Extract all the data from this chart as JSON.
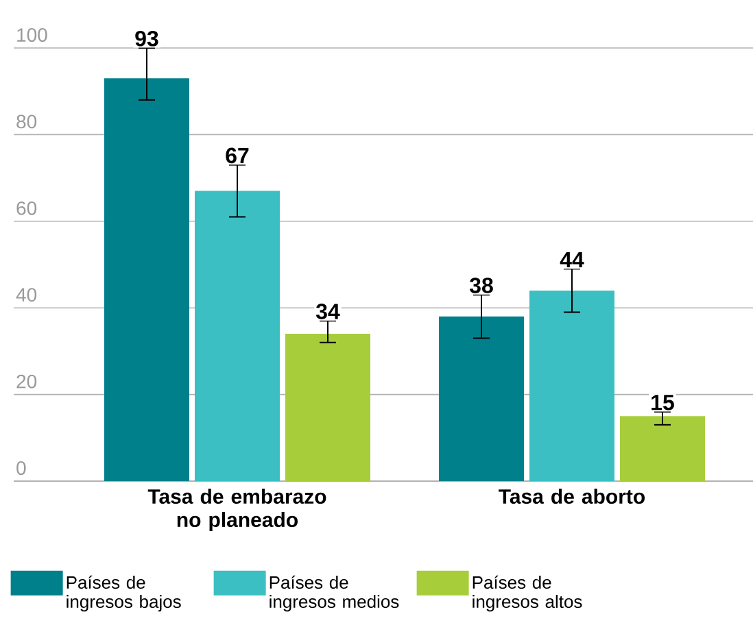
{
  "chart_data": {
    "type": "bar",
    "categories": [
      "Tasa de embarazo no planeado",
      "Tasa de aborto"
    ],
    "series": [
      {
        "name": "Países de ingresos bajos",
        "color": "#00808b",
        "values": [
          93,
          38
        ],
        "errors": [
          [
            88,
            100
          ],
          [
            33,
            43
          ]
        ]
      },
      {
        "name": "Países de ingresos medios",
        "color": "#3bbfc2",
        "values": [
          67,
          44
        ],
        "errors": [
          [
            61,
            73
          ],
          [
            39,
            49
          ]
        ]
      },
      {
        "name": "Países de ingresos altos",
        "color": "#a8cd3a",
        "values": [
          34,
          15
        ],
        "errors": [
          [
            32,
            37
          ],
          [
            13,
            16
          ]
        ]
      }
    ],
    "ylim": [
      0,
      100
    ],
    "yticks": [
      0,
      20,
      40,
      60,
      80,
      100
    ],
    "grid": "y",
    "legend": "bottom",
    "data_labels": true
  }
}
